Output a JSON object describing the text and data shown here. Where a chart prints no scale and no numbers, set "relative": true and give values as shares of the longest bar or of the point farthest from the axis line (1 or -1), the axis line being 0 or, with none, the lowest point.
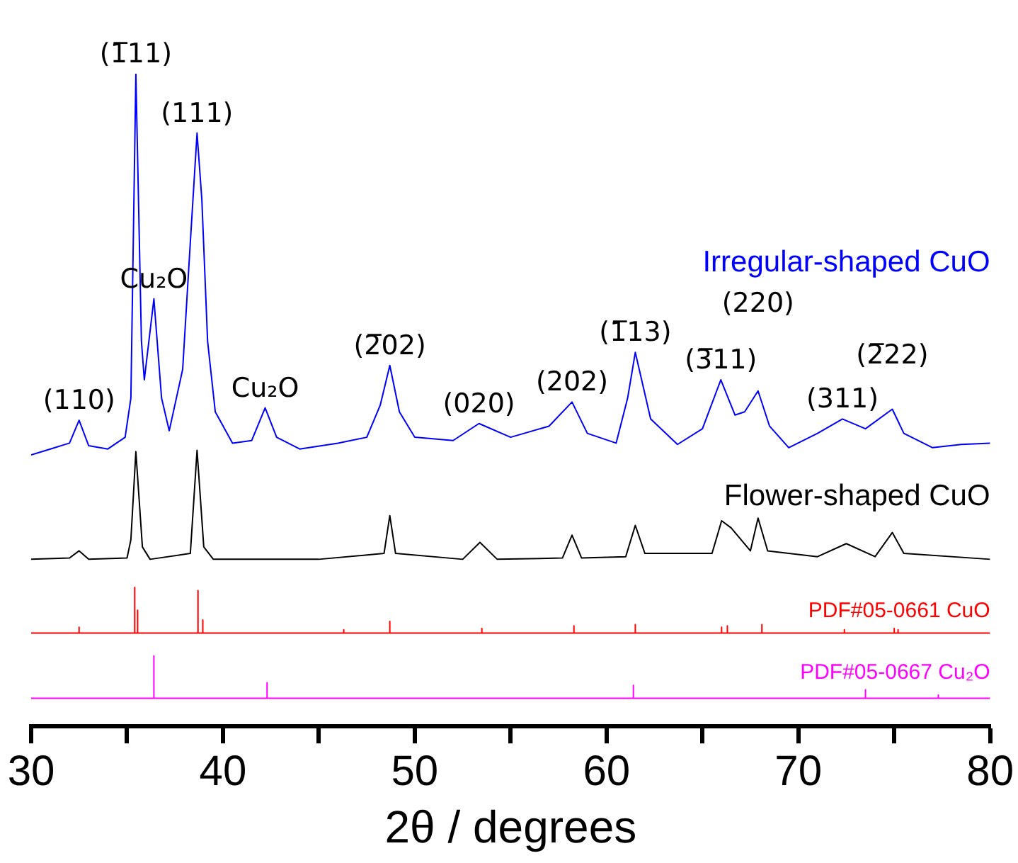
{
  "chart_data": {
    "type": "line",
    "xlabel": "2θ / degrees",
    "relative": true,
    "marker": "none",
    "grid": false,
    "xlim": [
      30,
      80
    ],
    "xticks": [
      30,
      {
        "value": 35,
        "label": null
      },
      40,
      {
        "value": 45,
        "label": null
      },
      50,
      {
        "value": 55,
        "label": null
      },
      60,
      {
        "value": 65,
        "label": null
      },
      70,
      {
        "value": 75,
        "label": null
      },
      80
    ],
    "series": [
      {
        "name": "Irregular-shaped CuO",
        "color": "#0000ff",
        "x": [
          30,
          31,
          32,
          32.5,
          33,
          34,
          34.9,
          35.2,
          35.46,
          35.75,
          35.9,
          36.4,
          36.8,
          37.2,
          37.9,
          38.3,
          38.65,
          38.9,
          39.2,
          39.6,
          40.5,
          41.5,
          42.2,
          42.8,
          44,
          46,
          47.5,
          48.2,
          48.7,
          49.2,
          50,
          52,
          53.35,
          55,
          57,
          58.2,
          59,
          60.5,
          61.1,
          61.5,
          62.3,
          63.7,
          65,
          65.96,
          66.7,
          67.2,
          67.9,
          68.5,
          69.5,
          71,
          72.3,
          73.5,
          74.9,
          75.5,
          77,
          78.5,
          80
        ],
        "values": [
          0.416,
          0.425,
          0.434,
          0.469,
          0.43,
          0.425,
          0.443,
          0.503,
          1,
          0.59,
          0.531,
          0.655,
          0.503,
          0.453,
          0.547,
          0.742,
          0.909,
          0.807,
          0.59,
          0.482,
          0.434,
          0.438,
          0.488,
          0.443,
          0.425,
          0.434,
          0.443,
          0.492,
          0.553,
          0.482,
          0.443,
          0.438,
          0.464,
          0.443,
          0.46,
          0.497,
          0.449,
          0.434,
          0.503,
          0.573,
          0.471,
          0.432,
          0.456,
          0.531,
          0.477,
          0.482,
          0.514,
          0.46,
          0.427,
          0.449,
          0.471,
          0.456,
          0.486,
          0.449,
          0.427,
          0.432,
          0.434
        ]
      },
      {
        "name": "Flower-shaped CuO",
        "color": "#000000",
        "x": [
          30,
          32,
          32.5,
          33,
          35,
          35.2,
          35.46,
          35.8,
          36.2,
          38.3,
          38.65,
          39,
          39.5,
          45,
          48.4,
          48.7,
          49,
          52.5,
          53.4,
          54.3,
          57.7,
          58.2,
          58.7,
          61,
          61.5,
          62,
          65.5,
          66,
          66.5,
          67.5,
          67.9,
          68.4,
          71,
          72.5,
          74,
          74.9,
          75.5,
          80
        ],
        "values": [
          0.256,
          0.258,
          0.269,
          0.256,
          0.258,
          0.286,
          0.421,
          0.275,
          0.256,
          0.265,
          0.423,
          0.275,
          0.256,
          0.256,
          0.265,
          0.323,
          0.265,
          0.256,
          0.282,
          0.256,
          0.258,
          0.293,
          0.258,
          0.26,
          0.308,
          0.265,
          0.265,
          0.315,
          0.304,
          0.269,
          0.319,
          0.269,
          0.26,
          0.28,
          0.26,
          0.297,
          0.265,
          0.256
        ]
      },
      {
        "name": "PDF#05-0661 CuO",
        "color": "#ff0000",
        "x": [
          30,
          32.5,
          32.5,
          32.5,
          35.4,
          35.4,
          35.4,
          35.55,
          35.55,
          35.55,
          38.7,
          38.7,
          38.7,
          38.95,
          38.95,
          38.95,
          46.3,
          46.3,
          46.3,
          48.7,
          48.7,
          48.7,
          53.5,
          53.5,
          53.5,
          58.3,
          58.3,
          58.3,
          61.5,
          61.5,
          61.5,
          66,
          66,
          66,
          66.3,
          66.3,
          66.3,
          68.1,
          68.1,
          68.1,
          72.4,
          72.4,
          72.4,
          75,
          75,
          75,
          75.2,
          75.2,
          75.2,
          80
        ],
        "values": [
          0.143,
          0.143,
          0.152,
          0.143,
          0.143,
          0.213,
          0.143,
          0.143,
          0.178,
          0.143,
          0.143,
          0.208,
          0.143,
          0.143,
          0.163,
          0.143,
          0.143,
          0.148,
          0.143,
          0.143,
          0.161,
          0.143,
          0.143,
          0.15,
          0.143,
          0.143,
          0.154,
          0.143,
          0.143,
          0.156,
          0.143,
          0.143,
          0.152,
          0.143,
          0.143,
          0.154,
          0.143,
          0.143,
          0.156,
          0.143,
          0.143,
          0.148,
          0.143,
          0.143,
          0.15,
          0.143,
          0.143,
          0.148,
          0.143,
          0.143
        ]
      },
      {
        "name": "PDF#05-0667 Cu₂O",
        "color": "#ff00ff",
        "x": [
          30,
          36.4,
          36.4,
          36.4,
          42.3,
          42.3,
          42.3,
          61.4,
          61.4,
          61.4,
          73.5,
          73.5,
          73.5,
          77.3,
          77.3,
          77.3,
          80
        ],
        "values": [
          0.043,
          0.043,
          0.108,
          0.043,
          0.043,
          0.067,
          0.043,
          0.043,
          0.063,
          0.043,
          0.043,
          0.056,
          0.043,
          0.043,
          0.048,
          0.043,
          0.043
        ]
      }
    ],
    "annotations": [
      {
        "text": "(110)",
        "x": 32.5,
        "y": 0.469
      },
      {
        "text": "(1̅11)",
        "x": 35.46,
        "y": 1
      },
      {
        "text": "Cu₂O",
        "x": 36.4,
        "y": 0.655
      },
      {
        "text": "(111)",
        "x": 38.65,
        "y": 0.909
      },
      {
        "text": "Cu₂O",
        "x": 42.2,
        "y": 0.488
      },
      {
        "text": "(2̅02)",
        "x": 48.7,
        "y": 0.553
      },
      {
        "text": "(020)",
        "x": 53.35,
        "y": 0.464
      },
      {
        "text": "(202)",
        "x": 58.2,
        "y": 0.497
      },
      {
        "text": "(1̅13)",
        "x": 61.5,
        "y": 0.573
      },
      {
        "text": "(3̅11)",
        "x": 65.96,
        "y": 0.531
      },
      {
        "text": "(220)",
        "x": 67.9,
        "y": 0.514
      },
      {
        "text": "(311)",
        "x": 72.3,
        "y": 0.471
      },
      {
        "text": "(2̅22)",
        "x": 74.9,
        "y": 0.486
      }
    ]
  }
}
